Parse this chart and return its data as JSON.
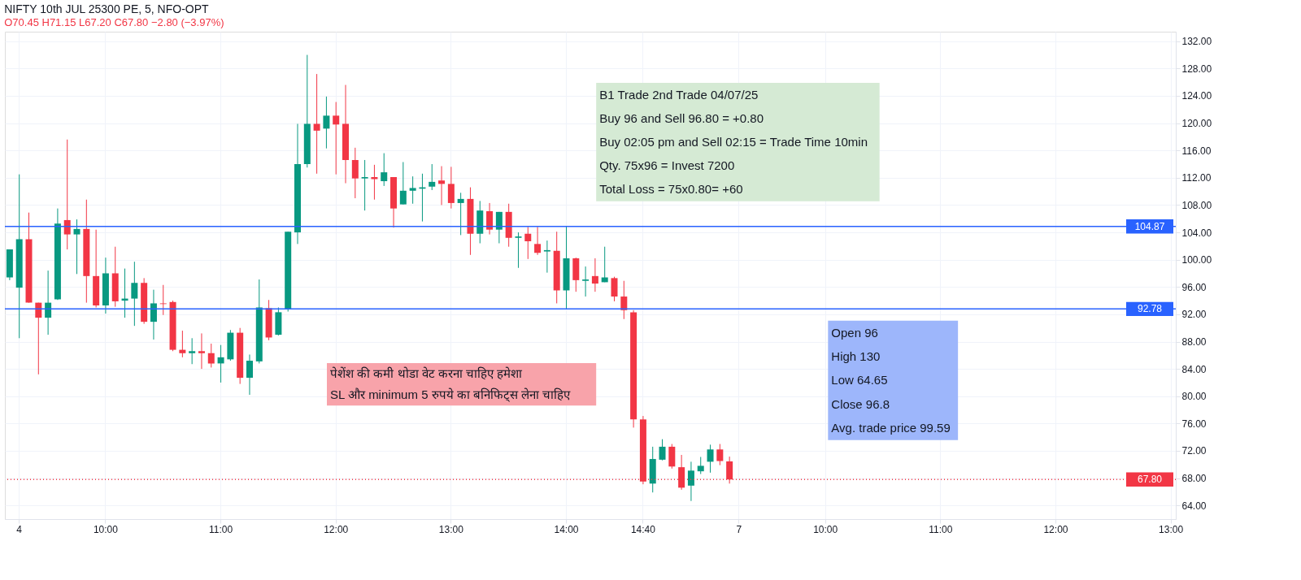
{
  "chart_data": {
    "type": "candlestick",
    "title": "NIFTY 10th JUL 25300 PE, 5, NFO-OPT",
    "subtitle": "O70.45 H71.15 L67.20 C67.80 −2.80 (−3.97%)",
    "categories": [
      null,
      "4",
      null,
      null,
      null,
      null,
      null,
      null,
      null,
      null,
      "10:00",
      null,
      null,
      null,
      null,
      null,
      null,
      null,
      null,
      null,
      null,
      null,
      "11:00",
      null,
      null,
      null,
      null,
      null,
      null,
      null,
      null,
      null,
      null,
      null,
      "12:00",
      null,
      null,
      null,
      null,
      null,
      null,
      null,
      null,
      null,
      null,
      null,
      "13:00",
      null,
      null,
      null,
      null,
      null,
      null,
      null,
      null,
      null,
      null,
      null,
      "14:00",
      null,
      null,
      null,
      null,
      null,
      null,
      null,
      "14:40",
      null,
      null,
      null,
      null,
      null,
      null,
      null,
      null,
      null,
      "7",
      null,
      null,
      null,
      null,
      null,
      null,
      null,
      null,
      "10:00",
      null,
      null,
      null,
      null,
      null,
      null,
      null,
      null,
      null,
      null,
      null,
      "11:00",
      null,
      null,
      null,
      null,
      null,
      null,
      null,
      null,
      null,
      null,
      null,
      "12:00",
      null,
      null,
      null,
      null,
      null,
      null,
      null,
      null,
      null,
      null,
      null,
      "13:00"
    ],
    "ohlc": [
      [
        97.4,
        101.5,
        97.0,
        101.5
      ],
      [
        95.9,
        112.5,
        88.5,
        103.0
      ],
      [
        103.0,
        106.9,
        93.7,
        93.7
      ],
      [
        93.7,
        93.7,
        83.2,
        91.5
      ],
      [
        91.5,
        98.4,
        89.0,
        93.7
      ],
      [
        94.2,
        107.5,
        94.1,
        105.3
      ],
      [
        105.8,
        117.6,
        101.5,
        103.7
      ],
      [
        103.7,
        105.9,
        97.9,
        104.5
      ],
      [
        104.5,
        108.8,
        93.7,
        97.6
      ],
      [
        97.6,
        104.4,
        93.0,
        93.3
      ],
      [
        93.3,
        100.3,
        92.1,
        98.0
      ],
      [
        98.0,
        101.9,
        93.1,
        93.9
      ],
      [
        94.0,
        98.7,
        91.5,
        94.3
      ],
      [
        94.3,
        99.7,
        90.3,
        96.6
      ],
      [
        96.6,
        97.3,
        90.6,
        90.9
      ],
      [
        90.9,
        95.6,
        88.3,
        93.6
      ],
      [
        93.6,
        96.3,
        91.9,
        93.5
      ],
      [
        93.8,
        94.0,
        86.6,
        86.8
      ],
      [
        86.8,
        89.6,
        85.7,
        86.3
      ],
      [
        86.3,
        88.5,
        84.7,
        86.6
      ],
      [
        86.6,
        89.2,
        84.0,
        86.3
      ],
      [
        86.3,
        87.7,
        84.2,
        84.8
      ],
      [
        84.8,
        87.5,
        82.0,
        85.7
      ],
      [
        85.4,
        89.7,
        85.2,
        89.3
      ],
      [
        89.3,
        90.0,
        81.8,
        82.7
      ],
      [
        82.7,
        86.1,
        80.2,
        85.2
      ],
      [
        85.1,
        97.1,
        84.8,
        93.0
      ],
      [
        92.9,
        94.1,
        88.2,
        88.6
      ],
      [
        89.0,
        93.0,
        88.9,
        92.3
      ],
      [
        92.7,
        104.1,
        92.4,
        104.1
      ],
      [
        104.0,
        119.9,
        102.3,
        114.0
      ],
      [
        114.0,
        130.0,
        113.5,
        119.9
      ],
      [
        119.9,
        127.2,
        112.6,
        118.9
      ],
      [
        119.2,
        123.9,
        116.3,
        121.1
      ],
      [
        121.1,
        123.1,
        112.5,
        119.8
      ],
      [
        119.9,
        125.6,
        111.2,
        114.6
      ],
      [
        114.6,
        116.4,
        109.0,
        111.9
      ],
      [
        111.9,
        114.6,
        107.2,
        112.1
      ],
      [
        112.1,
        113.9,
        108.8,
        111.8
      ],
      [
        111.5,
        115.6,
        110.8,
        112.8
      ],
      [
        112.1,
        112.1,
        104.7,
        107.5
      ],
      [
        108.1,
        114.3,
        108.1,
        110.1
      ],
      [
        110.1,
        112.2,
        108.2,
        110.5
      ],
      [
        110.4,
        112.6,
        105.6,
        110.6
      ],
      [
        110.7,
        114.0,
        110.2,
        111.4
      ],
      [
        111.6,
        113.7,
        108.0,
        111.1
      ],
      [
        111.1,
        113.6,
        107.5,
        108.3
      ],
      [
        108.3,
        109.8,
        103.6,
        108.9
      ],
      [
        108.9,
        110.6,
        100.7,
        103.8
      ],
      [
        103.8,
        108.6,
        102.4,
        107.2
      ],
      [
        107.1,
        108.3,
        103.7,
        104.4
      ],
      [
        104.4,
        107.0,
        102.4,
        107.0
      ],
      [
        107.0,
        108.2,
        101.9,
        103.2
      ],
      [
        103.2,
        104.0,
        98.8,
        103.4
      ],
      [
        103.8,
        104.8,
        100.1,
        102.7
      ],
      [
        102.3,
        104.8,
        100.7,
        101.0
      ],
      [
        101.2,
        102.8,
        98.1,
        101.4
      ],
      [
        101.3,
        104.1,
        93.6,
        95.5
      ],
      [
        95.5,
        104.9,
        92.8,
        100.2
      ],
      [
        100.2,
        100.3,
        95.3,
        97.0
      ],
      [
        96.9,
        99.0,
        94.6,
        97.1
      ],
      [
        97.6,
        100.2,
        95.3,
        96.5
      ],
      [
        96.7,
        101.9,
        96.7,
        97.4
      ],
      [
        97.3,
        97.5,
        93.9,
        94.6
      ],
      [
        94.6,
        96.9,
        91.3,
        92.6
      ],
      [
        92.3,
        92.6,
        75.4,
        76.6
      ],
      [
        76.6,
        77.1,
        67.1,
        67.5
      ],
      [
        67.2,
        72.6,
        65.9,
        70.8
      ],
      [
        70.7,
        73.7,
        70.6,
        72.6
      ],
      [
        72.6,
        73.0,
        69.4,
        69.7
      ],
      [
        69.6,
        71.4,
        66.3,
        66.6
      ],
      [
        66.9,
        70.4,
        64.65,
        69.1
      ],
      [
        69.0,
        71.1,
        68.6,
        69.8
      ],
      [
        70.4,
        72.9,
        68.8,
        72.2
      ],
      [
        72.2,
        73.0,
        69.9,
        70.5
      ],
      [
        70.45,
        71.15,
        67.2,
        67.8
      ],
      null,
      null,
      null,
      null,
      null,
      null,
      null,
      null,
      null,
      null,
      null,
      null,
      null,
      null,
      null,
      null,
      null,
      null,
      null,
      null,
      null,
      null,
      null,
      null,
      null,
      null,
      null,
      null,
      null,
      null,
      null,
      null,
      null,
      null,
      null,
      null,
      null,
      null,
      null,
      null,
      null,
      null,
      null,
      null,
      null,
      null
    ],
    "ylim": [
      62.0,
      133.4
    ],
    "yticks": [
      {
        "value": 64,
        "label": "64.00"
      },
      {
        "value": 68,
        "label": "68.00"
      },
      {
        "value": 72,
        "label": "72.00"
      },
      {
        "value": 76,
        "label": "76.00"
      },
      {
        "value": 80,
        "label": "80.00"
      },
      {
        "value": 84,
        "label": "84.00"
      },
      {
        "value": 88,
        "label": "88.00"
      },
      {
        "value": 92,
        "label": "92.00"
      },
      {
        "value": 96,
        "label": "96.00"
      },
      {
        "value": 100,
        "label": "100.00"
      },
      {
        "value": 104,
        "label": "104.00"
      },
      {
        "value": 108,
        "label": "108.00"
      },
      {
        "value": 112,
        "label": "112.00"
      },
      {
        "value": 116,
        "label": "116.00"
      },
      {
        "value": 120,
        "label": "120.00"
      },
      {
        "value": 124,
        "label": "124.00"
      },
      {
        "value": 128,
        "label": "128.00"
      },
      {
        "value": 132,
        "label": "132.00"
      }
    ],
    "ref_lines": [
      {
        "axis": "y",
        "value": 104.87,
        "label": "104.87",
        "color": "#2962ff",
        "line_style": "solid"
      },
      {
        "axis": "y",
        "value": 92.78,
        "label": "92.78",
        "color": "#2962ff",
        "line_style": "solid"
      },
      {
        "axis": "y",
        "value": 67.8,
        "label": "67.80",
        "color": "#f23645",
        "line_style": "dotted"
      }
    ],
    "annotations": [
      "B1 Trade  2nd Trade 04/07/25\nBuy 96 and Sell 96.80 =  +0.80\nBuy 02:05 pm and Sell 02:15 = Trade Time 10min\nQty. 75x96 = Invest  7200\nTotal Loss = 75x0.80= +60",
      "पेशेंश की कमी थोडा वेट करना चाहिए हमेशा\n SL और minimum 5 रुपये का बनिफिट्स  लेना चाहिए",
      "Open 96\nHigh 130\nLow 64.65\nClose 96.8\nAvg. trade price 99.59"
    ],
    "grid": true
  }
}
